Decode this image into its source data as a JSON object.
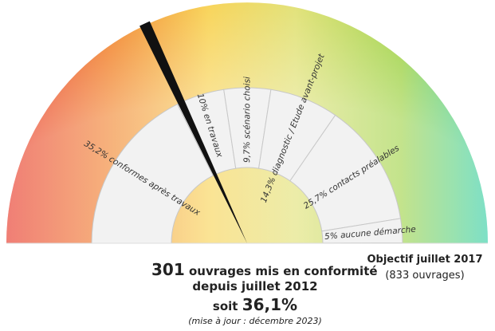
{
  "chart_data": {
    "type": "gauge",
    "range": [
      0,
      100
    ],
    "values": [
      35.2,
      10,
      9.7,
      14.3,
      25.7,
      5
    ],
    "value_labels": [
      "35,2% conformes après travaux",
      "10% en travaux",
      "9,7% scénario choisi",
      "14,3% diagnostic / Etude avant-projet",
      "25,7% contacts préalables",
      "5% aucune démarche"
    ],
    "needle_value": 36.1,
    "needle_label": "36,1%",
    "needle_prefix": "soit",
    "headline_number": "301",
    "headline_text": "ouvrages mis en conformité",
    "headline_since": "depuis juillet 2012",
    "update_note": "(mise à jour : décembre 2023)",
    "goal_title": "Objectif juillet 2017",
    "goal_subtitle": "(833 ouvrages)",
    "needle_color": "#111111",
    "segment_color": "#f2f2f2"
  }
}
